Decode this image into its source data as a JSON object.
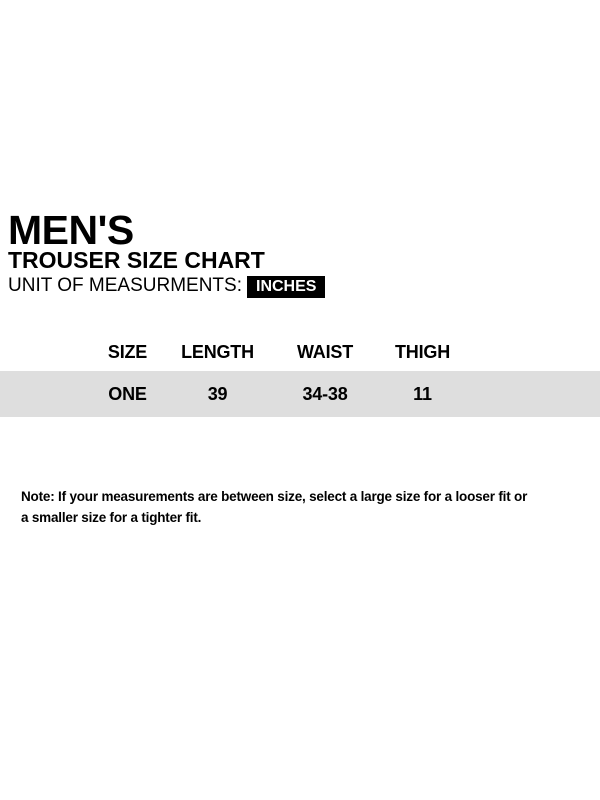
{
  "header": {
    "title": "MEN'S",
    "subtitle": "TROUSER SIZE CHART",
    "unit_label": "UNIT OF MEASURMENTS:",
    "unit_value": "INCHES"
  },
  "chart_data": {
    "type": "table",
    "columns": [
      "SIZE",
      "LENGTH",
      "WAIST",
      "THIGH"
    ],
    "rows": [
      {
        "size": "ONE",
        "length": "39",
        "waist": "34-38",
        "thigh": "11"
      }
    ]
  },
  "note": {
    "line1": "Note: If your measurements are between size, select a large size for a looser fit or",
    "line2": "a smaller size for a tighter fit."
  },
  "colors": {
    "text": "#000000",
    "row_background": "#dedede",
    "unit_badge_background": "#000000",
    "unit_badge_text": "#ffffff",
    "page_background": "#ffffff"
  }
}
